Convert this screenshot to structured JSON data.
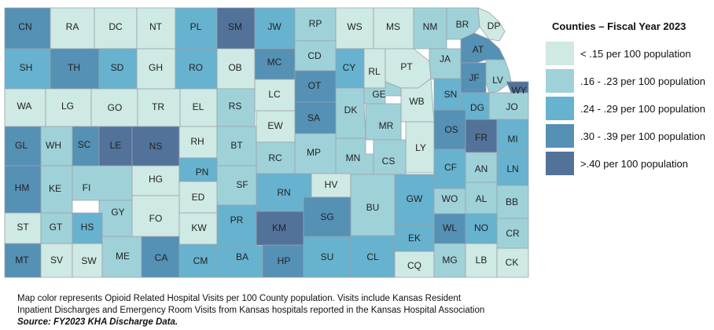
{
  "legend": {
    "title": "Counties – Fiscal Year 2023",
    "bins": [
      {
        "label": "< .15 per 100 population",
        "color": "#cfe9e4"
      },
      {
        "label": ".16 - .23 per 100 population",
        "color": "#9fd1d9"
      },
      {
        "label": ".24 - .29 per 100 population",
        "color": "#67b2cf"
      },
      {
        "label": ".30 - .39 per 100 population",
        "color": "#5590b5"
      },
      {
        "label": ">.40 per 100 population",
        "color": "#53729a"
      }
    ]
  },
  "counties": [
    {
      "name": "CN",
      "bin": 3
    },
    {
      "name": "RA",
      "bin": 0
    },
    {
      "name": "DC",
      "bin": 0
    },
    {
      "name": "NT",
      "bin": 0
    },
    {
      "name": "PL",
      "bin": 2
    },
    {
      "name": "SM",
      "bin": 4
    },
    {
      "name": "JW",
      "bin": 2
    },
    {
      "name": "RP",
      "bin": 1
    },
    {
      "name": "WS",
      "bin": 0
    },
    {
      "name": "MS",
      "bin": 0
    },
    {
      "name": "NM",
      "bin": 1
    },
    {
      "name": "BR",
      "bin": 1
    },
    {
      "name": "DP",
      "bin": 0
    },
    {
      "name": "SH",
      "bin": 2
    },
    {
      "name": "TH",
      "bin": 3
    },
    {
      "name": "SD",
      "bin": 2
    },
    {
      "name": "GH",
      "bin": 0
    },
    {
      "name": "RO",
      "bin": 2
    },
    {
      "name": "OB",
      "bin": 0
    },
    {
      "name": "MC",
      "bin": 3
    },
    {
      "name": "CD",
      "bin": 1
    },
    {
      "name": "CY",
      "bin": 2
    },
    {
      "name": "RL",
      "bin": 0
    },
    {
      "name": "PT",
      "bin": 0
    },
    {
      "name": "JA",
      "bin": 1
    },
    {
      "name": "AT",
      "bin": 3
    },
    {
      "name": "JF",
      "bin": 3
    },
    {
      "name": "LV",
      "bin": 1
    },
    {
      "name": "WY",
      "bin": 4
    },
    {
      "name": "WA",
      "bin": 0
    },
    {
      "name": "LG",
      "bin": 0
    },
    {
      "name": "GO",
      "bin": 0
    },
    {
      "name": "TR",
      "bin": 0
    },
    {
      "name": "EL",
      "bin": 0
    },
    {
      "name": "RS",
      "bin": 1
    },
    {
      "name": "LC",
      "bin": 0
    },
    {
      "name": "OT",
      "bin": 3
    },
    {
      "name": "GE",
      "bin": 1
    },
    {
      "name": "WB",
      "bin": 0
    },
    {
      "name": "SN",
      "bin": 2
    },
    {
      "name": "DG",
      "bin": 2
    },
    {
      "name": "JO",
      "bin": 1
    },
    {
      "name": "DK",
      "bin": 1
    },
    {
      "name": "SA",
      "bin": 3
    },
    {
      "name": "MR",
      "bin": 1
    },
    {
      "name": "GL",
      "bin": 3
    },
    {
      "name": "WH",
      "bin": 1
    },
    {
      "name": "SC",
      "bin": 3
    },
    {
      "name": "LE",
      "bin": 4
    },
    {
      "name": "NS",
      "bin": 4
    },
    {
      "name": "RH",
      "bin": 0
    },
    {
      "name": "BT",
      "bin": 1
    },
    {
      "name": "EW",
      "bin": 0
    },
    {
      "name": "LY",
      "bin": 0
    },
    {
      "name": "OS",
      "bin": 3
    },
    {
      "name": "FR",
      "bin": 4
    },
    {
      "name": "MI",
      "bin": 2
    },
    {
      "name": "RC",
      "bin": 1
    },
    {
      "name": "MP",
      "bin": 1
    },
    {
      "name": "MN",
      "bin": 1
    },
    {
      "name": "CS",
      "bin": 1
    },
    {
      "name": "CF",
      "bin": 2
    },
    {
      "name": "AN",
      "bin": 1
    },
    {
      "name": "LN",
      "bin": 2
    },
    {
      "name": "HM",
      "bin": 3
    },
    {
      "name": "KE",
      "bin": 1
    },
    {
      "name": "FI",
      "bin": 1
    },
    {
      "name": "HG",
      "bin": 0
    },
    {
      "name": "PN",
      "bin": 2
    },
    {
      "name": "SF",
      "bin": 1
    },
    {
      "name": "RN",
      "bin": 2
    },
    {
      "name": "HV",
      "bin": 0
    },
    {
      "name": "ED",
      "bin": 0
    },
    {
      "name": "GW",
      "bin": 2
    },
    {
      "name": "WO",
      "bin": 1
    },
    {
      "name": "AL",
      "bin": 1
    },
    {
      "name": "BB",
      "bin": 1
    },
    {
      "name": "GY",
      "bin": 1
    },
    {
      "name": "BU",
      "bin": 1
    },
    {
      "name": "ST",
      "bin": 0
    },
    {
      "name": "GT",
      "bin": 1
    },
    {
      "name": "HS",
      "bin": 2
    },
    {
      "name": "FO",
      "bin": 0
    },
    {
      "name": "KW",
      "bin": 0
    },
    {
      "name": "PR",
      "bin": 2
    },
    {
      "name": "KM",
      "bin": 4
    },
    {
      "name": "SG",
      "bin": 3
    },
    {
      "name": "WL",
      "bin": 3
    },
    {
      "name": "NO",
      "bin": 2
    },
    {
      "name": "CR",
      "bin": 1
    },
    {
      "name": "EK",
      "bin": 2
    },
    {
      "name": "MT",
      "bin": 3
    },
    {
      "name": "SV",
      "bin": 0
    },
    {
      "name": "SW",
      "bin": 0
    },
    {
      "name": "ME",
      "bin": 1
    },
    {
      "name": "CA",
      "bin": 3
    },
    {
      "name": "CM",
      "bin": 2
    },
    {
      "name": "BA",
      "bin": 2
    },
    {
      "name": "HP",
      "bin": 3
    },
    {
      "name": "SU",
      "bin": 2
    },
    {
      "name": "CL",
      "bin": 2
    },
    {
      "name": "CQ",
      "bin": 0
    },
    {
      "name": "MG",
      "bin": 1
    },
    {
      "name": "LB",
      "bin": 0
    },
    {
      "name": "CK",
      "bin": 0
    }
  ],
  "note": {
    "line1": "Map color represents Opioid Related Hospital Visits per 100 County population. Visits include Kansas Resident",
    "line2": "Inpatient Discharges and Emergency Room Visits from Kansas hospitals reported in the Kansas Hospital Association",
    "source": "Source: FY2023 KHA Discharge Data."
  }
}
